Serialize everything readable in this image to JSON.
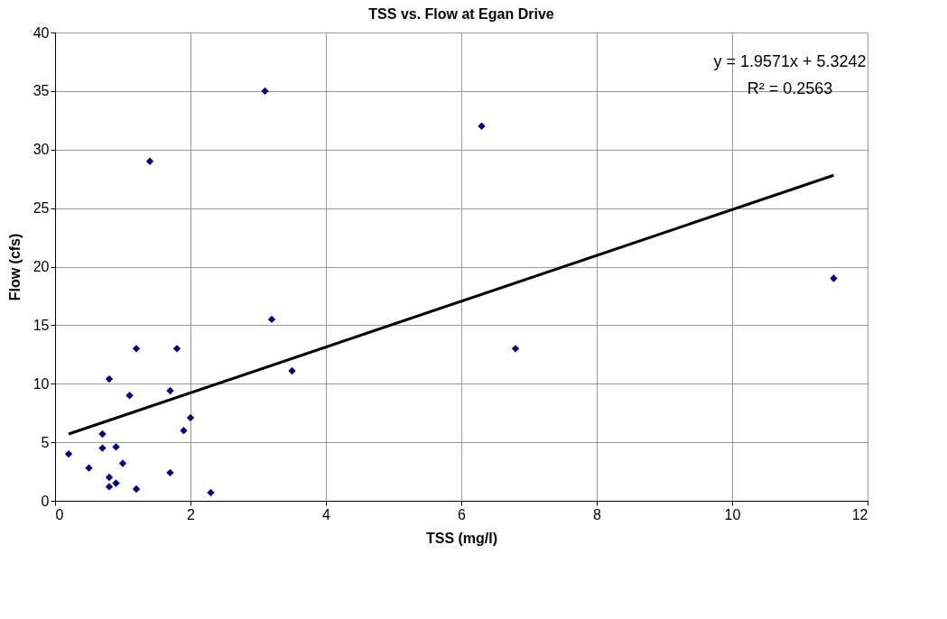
{
  "chart_data": {
    "type": "scatter",
    "title": "TSS vs. Flow at Egan Drive",
    "xlabel": "TSS (mg/l)",
    "ylabel": "Flow (cfs)",
    "xlim": [
      0,
      12
    ],
    "xticks": [
      0,
      2,
      4,
      6,
      8,
      10,
      12
    ],
    "ylim": [
      0,
      40
    ],
    "yticks": [
      0,
      5,
      10,
      15,
      20,
      25,
      30,
      35,
      40
    ],
    "grid": true,
    "annotations": [
      "y = 1.9571x + 5.3242",
      "R² = 0.2563"
    ],
    "series": [
      {
        "color": "#000080",
        "marker": "diamond",
        "x": [
          0.2,
          0.5,
          0.7,
          0.7,
          0.8,
          0.8,
          0.8,
          0.9,
          0.9,
          1.0,
          1.1,
          1.2,
          1.2,
          1.4,
          1.7,
          1.7,
          1.8,
          1.9,
          2.0,
          2.3,
          3.1,
          3.2,
          3.5,
          6.3,
          6.8,
          11.5
        ],
        "values": [
          4,
          2.8,
          5.7,
          4.5,
          10.4,
          2,
          1.2,
          4.6,
          1.5,
          3.2,
          9,
          13,
          1.0,
          29,
          9.4,
          2.4,
          13,
          6,
          7.1,
          0.7,
          35,
          15.5,
          11.1,
          32,
          13,
          19
        ]
      },
      {
        "type": "line",
        "color": "#000000",
        "x": [
          0.2,
          11.5
        ],
        "values": [
          5.7,
          27.8
        ]
      }
    ]
  }
}
